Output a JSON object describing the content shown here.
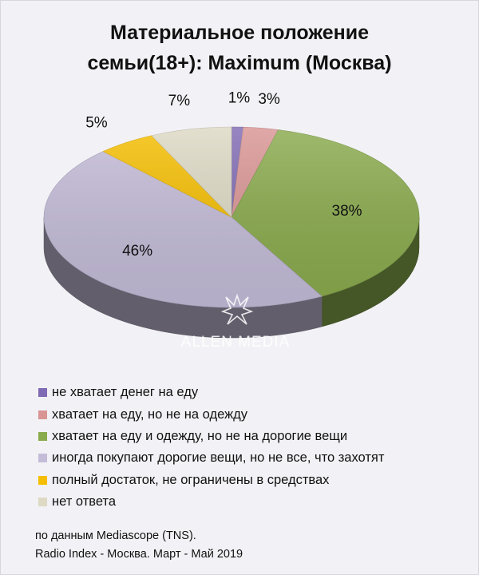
{
  "title_lines": [
    "Материальное положение",
    "семьи(18+): Maximum (Москва)"
  ],
  "watermark": "ALLEN MEDIA",
  "source_lines": [
    "по данным Mediascope (TNS).",
    "Radio Index - Москва. Март - Май 2019"
  ],
  "chart_data": {
    "type": "pie",
    "title": "Материальное положение семьи(18+): Maximum (Москва)",
    "unit": "%",
    "legend_position": "bottom",
    "slices": [
      {
        "label": "не хватает денег на еду",
        "value": 1,
        "value_label": "1%",
        "color": "#7f6bb3"
      },
      {
        "label": "хватает на еду, но не на одежду",
        "value": 3,
        "value_label": "3%",
        "color": "#d99594"
      },
      {
        "label": "хватает на еду и одежду, но не на дорогие вещи",
        "value": 38,
        "value_label": "38%",
        "color": "#8aab4d"
      },
      {
        "label": "иногда покупают дорогие вещи, но не все, что захотят",
        "value": 46,
        "value_label": "46%",
        "color": "#c4bcd8"
      },
      {
        "label": "полный достаток, не ограничены в средствах",
        "value": 5,
        "value_label": "5%",
        "color": "#f5be00"
      },
      {
        "label": "нет ответа",
        "value": 7,
        "value_label": "7%",
        "color": "#ddd9c4"
      }
    ]
  }
}
